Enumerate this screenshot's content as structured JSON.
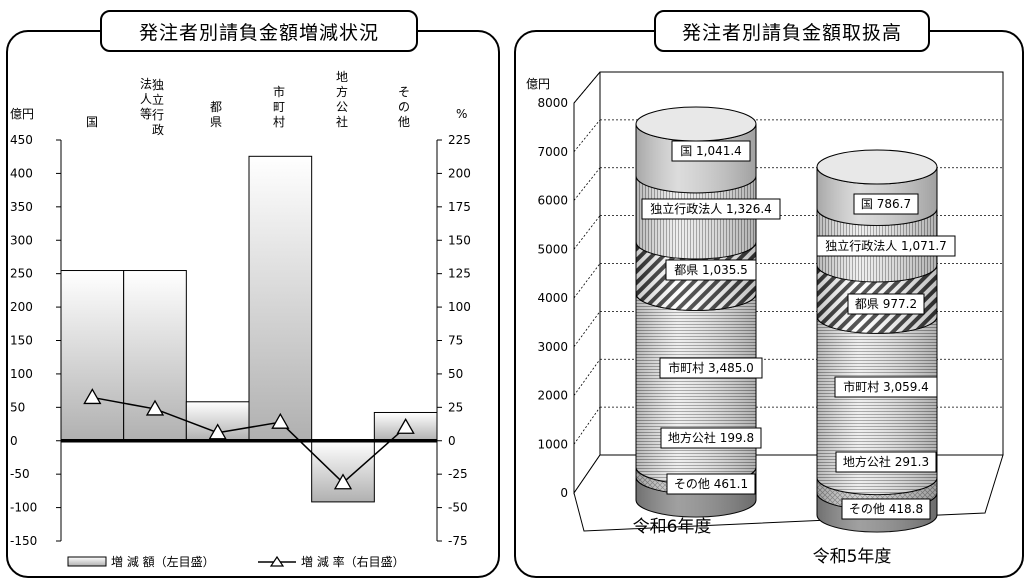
{
  "left_chart": {
    "title": "発注者別請負金額増減状況",
    "left_unit": "億円",
    "right_unit": "%",
    "legend_bar": "増 減 額（左目盛）",
    "legend_line": "増 減 率（右目盛）"
  },
  "right_chart": {
    "title": "発注者別請負金額取扱高",
    "y_unit": "億円"
  },
  "colors": {
    "bar": "#d0d0d0",
    "line": "#000000",
    "zero_line": "#000000"
  },
  "chart_data": [
    {
      "type": "bar",
      "title": "発注者別請負金額増減状況",
      "categories": [
        "国",
        "独立行政法人等",
        "都県",
        "市町村",
        "地方公社",
        "その他"
      ],
      "series": [
        {
          "name": "増減額（左目盛）",
          "axis": "left",
          "values": [
            254.7,
            254.7,
            58.3,
            425.6,
            -91.5,
            42.3
          ]
        },
        {
          "name": "増減率（右目盛）",
          "axis": "right",
          "type": "line",
          "values": [
            32.4,
            23.8,
            6.0,
            13.9,
            -31.4,
            10.1
          ]
        }
      ],
      "ylabel": "億円",
      "y2label": "%",
      "ylim": [
        -150,
        450
      ],
      "y2lim": [
        -75,
        225
      ],
      "yticks": [
        -150,
        -100,
        -50,
        0,
        50,
        100,
        150,
        200,
        250,
        300,
        350,
        400,
        450
      ],
      "y2ticks": [
        -75,
        -50,
        -25,
        0,
        25,
        50,
        75,
        100,
        125,
        150,
        175,
        200,
        225
      ],
      "grid": false,
      "legend_position": "bottom"
    },
    {
      "type": "bar",
      "subtype": "stacked-3d-cylinder",
      "title": "発注者別請負金額取扱高",
      "categories": [
        "令和6年度",
        "令和5年度"
      ],
      "series": [
        {
          "name": "その他",
          "values": [
            461.1,
            418.8
          ]
        },
        {
          "name": "地方公社",
          "values": [
            199.8,
            291.3
          ]
        },
        {
          "name": "市町村",
          "values": [
            3485.0,
            3059.4
          ]
        },
        {
          "name": "都県",
          "values": [
            1035.5,
            977.2
          ]
        },
        {
          "name": "独立行政法人",
          "values": [
            1326.4,
            1071.7
          ]
        },
        {
          "name": "国",
          "values": [
            1041.4,
            786.7
          ]
        }
      ],
      "data_labels": [
        [
          "その他 461.1",
          "地方公社 199.8",
          "市町村 3,485.0",
          "都県 1,035.5",
          "独立行政法人 1,326.4",
          "国 1,041.4"
        ],
        [
          "その他 418.8",
          "地方公社 291.3",
          "市町村 3,059.4",
          "都県 977.2",
          "独立行政法人 1,071.7",
          "国 786.7"
        ]
      ],
      "ylabel": "億円",
      "ylim": [
        0,
        8000
      ],
      "yticks": [
        0,
        1000,
        2000,
        3000,
        4000,
        5000,
        6000,
        7000,
        8000
      ],
      "grid": true
    }
  ]
}
